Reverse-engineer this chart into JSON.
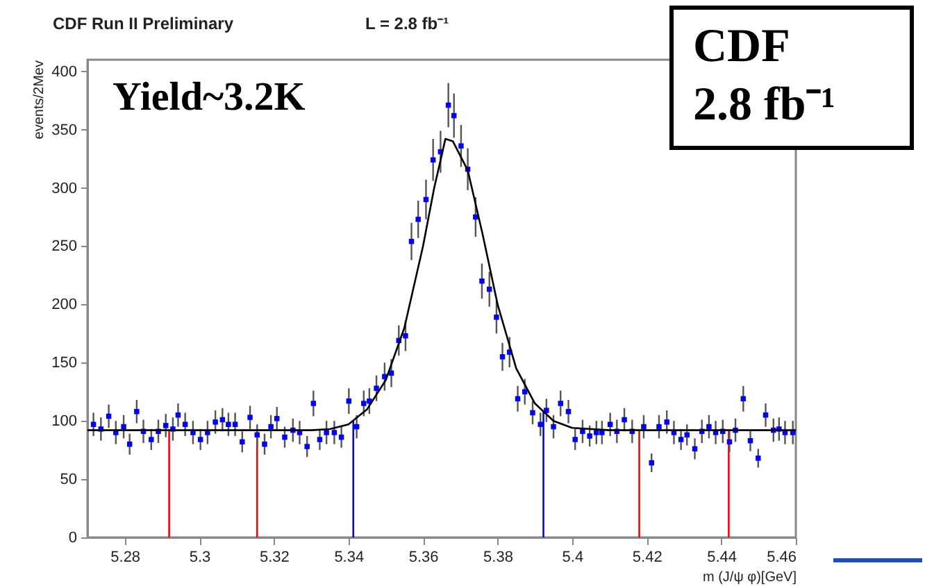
{
  "chart_data": {
    "type": "scatter",
    "title": "CDF Run II Preliminary",
    "subtitle": "L = 2.8 fb⁻¹",
    "xlabel": "m (J/ψ φ)[GeV]",
    "ylabel": "events/2Mev",
    "annotations": [
      "Yield~3.2K",
      "CDF",
      "2.8 fb⁻¹"
    ],
    "xlim": [
      5.27,
      5.46
    ],
    "xticks": [
      5.28,
      5.3,
      5.32,
      5.34,
      5.36,
      5.38,
      5.4,
      5.42,
      5.44,
      5.46
    ],
    "ylim": [
      0,
      410
    ],
    "yticks": [
      0,
      50,
      100,
      150,
      200,
      250,
      300,
      350,
      400
    ],
    "grid": false,
    "series": [
      {
        "marker": "square",
        "color": "#0000ff",
        "x": [
          5.2716,
          5.2736,
          5.2757,
          5.2776,
          5.2797,
          5.2813,
          5.2832,
          5.285,
          5.2871,
          5.289,
          5.291,
          5.2929,
          5.2943,
          5.2962,
          5.2983,
          5.3003,
          5.3022,
          5.3043,
          5.3062,
          5.3078,
          5.3096,
          5.3115,
          5.3136,
          5.3155,
          5.3175,
          5.3192,
          5.3208,
          5.3229,
          5.3251,
          5.3269,
          5.3289,
          5.3306,
          5.3323,
          5.3341,
          5.3362,
          5.3381,
          5.3401,
          5.3422,
          5.3441,
          5.3456,
          5.3475,
          5.3497,
          5.3515,
          5.3535,
          5.3553,
          5.3569,
          5.3587,
          5.3608,
          5.3627,
          5.3647,
          5.3668,
          5.3683,
          5.3702,
          5.372,
          5.3741,
          5.3758,
          5.3778,
          5.3797,
          5.3813,
          5.3832,
          5.3854,
          5.3873,
          5.3894,
          5.3915,
          5.3931,
          5.395,
          5.3969,
          5.399,
          5.4008,
          5.4028,
          5.4047,
          5.4065,
          5.408,
          5.4102,
          5.412,
          5.414,
          5.4161,
          5.4192,
          5.4213,
          5.4233,
          5.4254,
          5.4273,
          5.4292,
          5.4308,
          5.4329,
          5.4348,
          5.4367,
          5.4385,
          5.4404,
          5.4422,
          5.4438,
          5.4459,
          5.4478,
          5.4499,
          5.4519,
          5.454,
          5.4555,
          5.4571,
          5.4592
        ],
        "values": [
          97,
          93,
          104,
          90,
          95,
          80,
          108,
          91,
          84,
          91,
          96,
          93,
          105,
          97,
          90,
          84,
          90,
          99,
          101,
          97,
          97,
          82,
          103,
          88,
          80,
          95,
          102,
          86,
          92,
          90,
          78,
          115,
          84,
          90,
          90,
          86,
          117,
          95,
          115,
          117,
          128,
          138,
          141,
          169,
          173,
          254,
          273,
          290,
          324,
          331,
          371,
          362,
          336,
          316,
          275,
          220,
          213,
          189,
          155,
          159,
          119,
          125,
          107,
          97,
          109,
          95,
          115,
          108,
          84,
          91,
          87,
          90,
          90,
          97,
          91,
          101,
          91,
          95,
          64,
          95,
          99,
          90,
          84,
          88,
          76,
          91,
          95,
          90,
          91,
          82,
          92,
          119,
          83,
          68,
          105,
          92,
          93,
          90,
          90
        ],
        "errors": [
          10,
          10,
          10,
          10,
          10,
          9,
          10,
          10,
          9,
          10,
          10,
          10,
          10,
          10,
          10,
          9,
          10,
          10,
          10,
          10,
          10,
          9,
          10,
          9,
          9,
          10,
          10,
          9,
          10,
          10,
          9,
          11,
          9,
          10,
          10,
          9,
          11,
          10,
          11,
          11,
          11,
          12,
          12,
          13,
          13,
          16,
          16,
          17,
          18,
          18,
          19,
          19,
          18,
          18,
          17,
          15,
          15,
          14,
          12,
          13,
          11,
          11,
          10,
          10,
          10,
          10,
          11,
          10,
          9,
          10,
          9,
          10,
          10,
          10,
          10,
          10,
          10,
          10,
          8,
          10,
          10,
          10,
          9,
          9,
          9,
          10,
          10,
          10,
          10,
          9,
          10,
          11,
          9,
          8,
          10,
          10,
          10,
          10,
          10
        ]
      },
      {
        "type": "line",
        "color": "#000000",
        "x": [
          5.27,
          5.3,
          5.32,
          5.33,
          5.335,
          5.34,
          5.345,
          5.35,
          5.355,
          5.36,
          5.363,
          5.366,
          5.368,
          5.372,
          5.376,
          5.38,
          5.385,
          5.39,
          5.395,
          5.4,
          5.41,
          5.46
        ],
        "values": [
          92,
          92,
          92,
          92,
          93,
          97,
          110,
          135,
          180,
          250,
          300,
          342,
          340,
          315,
          260,
          200,
          145,
          115,
          100,
          94,
          92,
          92
        ]
      }
    ],
    "ref_lines": [
      {
        "axis": "x",
        "value": 5.2919,
        "color": "#ff0000"
      },
      {
        "axis": "x",
        "value": 5.3155,
        "color": "#ff0000"
      },
      {
        "axis": "x",
        "value": 5.3413,
        "color": "#0000ff"
      },
      {
        "axis": "x",
        "value": 5.3923,
        "color": "#0000ff"
      },
      {
        "axis": "x",
        "value": 5.418,
        "color": "#ff0000"
      },
      {
        "axis": "x",
        "value": 5.442,
        "color": "#ff0000"
      }
    ]
  }
}
